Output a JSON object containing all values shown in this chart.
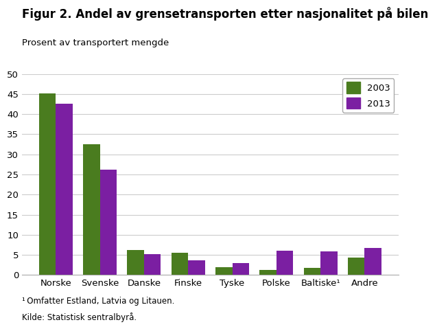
{
  "title": "Figur 2. Andel av grensetransporten etter nasjonalitet på bilen",
  "ylabel": "Prosent av transportert mengde",
  "categories": [
    "Norske",
    "Svenske",
    "Danske",
    "Finske",
    "Tyske",
    "Polske",
    "Baltiske¹",
    "Andre"
  ],
  "values_2003": [
    45.2,
    32.5,
    6.2,
    5.6,
    2.0,
    1.2,
    1.8,
    4.3
  ],
  "values_2013": [
    42.5,
    26.2,
    5.2,
    3.6,
    3.0,
    6.1,
    5.8,
    6.8
  ],
  "color_2003": "#4a7c1f",
  "color_2013": "#7b1fa2",
  "ylim": [
    0,
    50
  ],
  "yticks": [
    0,
    5,
    10,
    15,
    20,
    25,
    30,
    35,
    40,
    45,
    50
  ],
  "legend_labels": [
    "2003",
    "2013"
  ],
  "footnote1": "¹ Omfatter Estland, Latvia og Litauen.",
  "footnote2": "Kilde: Statistisk sentralbyrå.",
  "background_color": "#ffffff",
  "grid_color": "#cccccc",
  "title_fontsize": 12,
  "ylabel_fontsize": 9.5,
  "tick_fontsize": 9.5,
  "bar_width": 0.38
}
